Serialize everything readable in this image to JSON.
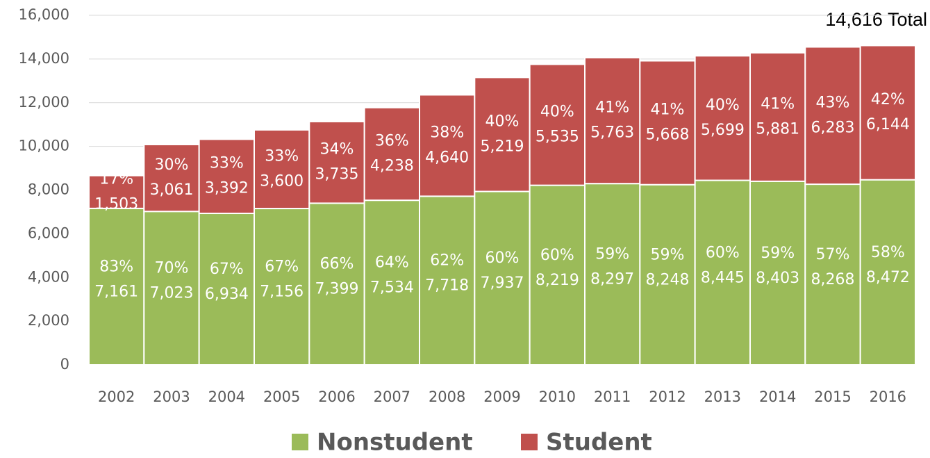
{
  "chart_data": {
    "type": "stacked_bar",
    "annotation": "14,616 Total",
    "categories": [
      "2002",
      "2003",
      "2004",
      "2005",
      "2006",
      "2007",
      "2008",
      "2009",
      "2010",
      "2011",
      "2012",
      "2013",
      "2014",
      "2015",
      "2016"
    ],
    "series": [
      {
        "name": "Nonstudent",
        "color": "#9bbb59",
        "values": [
          7161,
          7023,
          6934,
          7156,
          7399,
          7534,
          7718,
          7937,
          8219,
          8297,
          8248,
          8445,
          8403,
          8268,
          8472
        ],
        "value_labels": [
          "7,161",
          "7,023",
          "6,934",
          "7,156",
          "7,399",
          "7,534",
          "7,718",
          "7,937",
          "8,219",
          "8,297",
          "8,248",
          "8,445",
          "8,403",
          "8,268",
          "8,472"
        ],
        "share_labels": [
          "83%",
          "70%",
          "67%",
          "67%",
          "66%",
          "64%",
          "62%",
          "60%",
          "60%",
          "59%",
          "59%",
          "60%",
          "59%",
          "57%",
          "58%"
        ]
      },
      {
        "name": "Student",
        "color": "#c0504d",
        "values": [
          1503,
          3061,
          3392,
          3600,
          3735,
          4238,
          4640,
          5219,
          5535,
          5763,
          5668,
          5699,
          5881,
          6283,
          6144
        ],
        "value_labels": [
          "1,503",
          "3,061",
          "3,392",
          "3,600",
          "3,735",
          "4,238",
          "4,640",
          "5,219",
          "5,535",
          "5,763",
          "5,668",
          "5,699",
          "5,881",
          "6,283",
          "6,144"
        ],
        "share_labels": [
          "17%",
          "30%",
          "33%",
          "33%",
          "34%",
          "36%",
          "38%",
          "40%",
          "40%",
          "41%",
          "41%",
          "40%",
          "41%",
          "43%",
          "42%"
        ]
      }
    ],
    "ylim": [
      0,
      16000
    ],
    "yticks": [
      0,
      {
        "value": 2000,
        "label": "2,000"
      },
      {
        "value": 4000,
        "label": "4,000"
      },
      {
        "value": 6000,
        "label": "6,000"
      },
      {
        "value": 8000,
        "label": "8,000"
      },
      {
        "value": 10000,
        "label": "10,000"
      },
      {
        "value": 12000,
        "label": "12,000"
      },
      {
        "value": 14000,
        "label": "14,000"
      },
      {
        "value": 16000,
        "label": "16,000"
      }
    ],
    "grid": true
  }
}
